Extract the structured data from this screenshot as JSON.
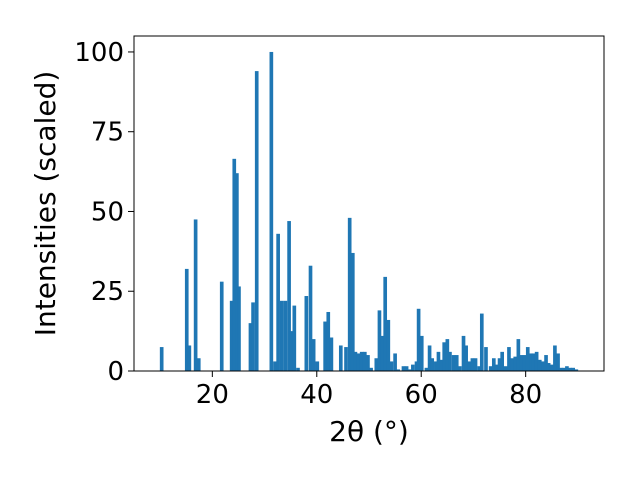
{
  "chart_data": {
    "type": "bar",
    "xlabel": "2θ (°)",
    "ylabel": "Intensities (scaled)",
    "xlim": [
      5,
      95
    ],
    "ylim": [
      0,
      105
    ],
    "xticks": [
      "20",
      "40",
      "60",
      "80"
    ],
    "yticks": [
      "0",
      "25",
      "50",
      "75",
      "100"
    ],
    "bar_color": "#1f77b4",
    "bar_width": 0.7,
    "x": [
      10.3,
      15.1,
      15.6,
      16.8,
      17.4,
      21.8,
      23.7,
      24.2,
      24.7,
      25.1,
      27.3,
      27.8,
      28.5,
      31.3,
      32.0,
      32.6,
      33.3,
      34.0,
      34.7,
      35.1,
      35.7,
      36.4,
      38.0,
      38.8,
      39.4,
      40.1,
      41.6,
      42.2,
      42.8,
      44.6,
      45.6,
      46.3,
      46.9,
      47.4,
      48.0,
      48.6,
      49.2,
      49.8,
      50.4,
      51.4,
      52.0,
      52.6,
      53.1,
      53.7,
      54.3,
      55.0,
      55.6,
      56.6,
      57.2,
      57.8,
      58.4,
      59.1,
      59.5,
      60.1,
      61.0,
      61.6,
      62.1,
      62.8,
      63.3,
      63.9,
      64.4,
      65.0,
      65.5,
      66.2,
      66.8,
      67.4,
      68.1,
      68.6,
      69.2,
      69.8,
      70.4,
      71.1,
      71.6,
      72.4,
      73.3,
      73.9,
      74.4,
      75.0,
      75.5,
      76.2,
      76.8,
      77.4,
      78.0,
      78.6,
      79.2,
      79.8,
      80.4,
      81.0,
      81.5,
      82.1,
      82.7,
      83.3,
      83.9,
      84.4,
      85.0,
      85.6,
      86.2,
      86.7,
      87.3,
      87.9,
      88.5,
      89.1,
      89.7
    ],
    "values": [
      7.5,
      32,
      8,
      47.5,
      4,
      28,
      22,
      66.5,
      62,
      26.5,
      15,
      21.5,
      94,
      100,
      3,
      43,
      22,
      22,
      47,
      12.5,
      20.5,
      1,
      23.5,
      33,
      10,
      3,
      15.5,
      18.5,
      10.5,
      8,
      7.5,
      48,
      37,
      6,
      5.5,
      6,
      6,
      5,
      1,
      4,
      19,
      11,
      29.5,
      16,
      3,
      5.5,
      0.5,
      1.5,
      1.5,
      0.5,
      2,
      3,
      19.5,
      11,
      1,
      8,
      4,
      3,
      6,
      3.5,
      9,
      10,
      6,
      5,
      5,
      1.5,
      11,
      8,
      3,
      4,
      4,
      1.5,
      18,
      7.5,
      1.5,
      4,
      2,
      4,
      6,
      1.5,
      7.5,
      4,
      4.5,
      10,
      5,
      5,
      7.5,
      5.5,
      5.5,
      6,
      3.5,
      3,
      5,
      2.5,
      2,
      8,
      5.5,
      1,
      1,
      1.5,
      1,
      1,
      0.5
    ]
  }
}
